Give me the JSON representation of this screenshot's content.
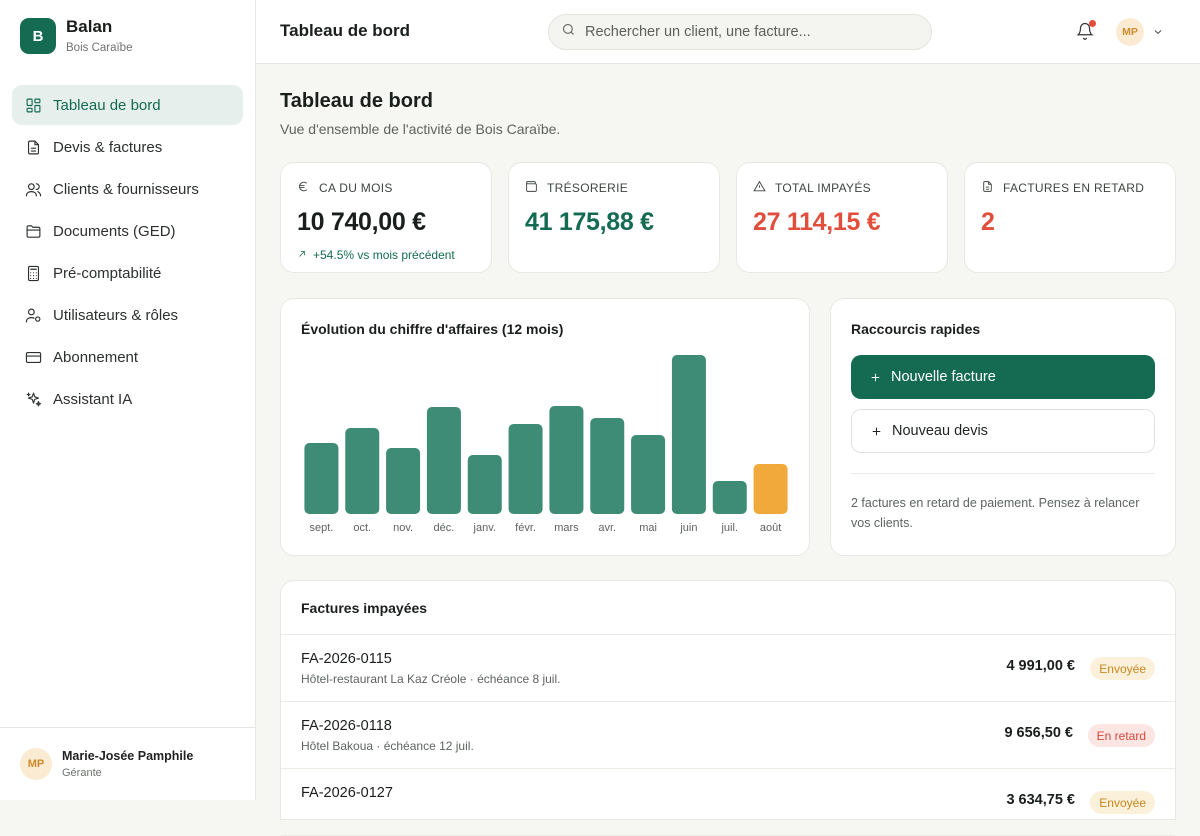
{
  "brand": {
    "initial": "B",
    "name": "Balan",
    "company": "Bois Caraïbe"
  },
  "sidebar": {
    "items": [
      {
        "label": "Tableau de bord",
        "icon": "dashboard-icon",
        "active": true
      },
      {
        "label": "Devis & factures",
        "icon": "file-text-icon"
      },
      {
        "label": "Clients & fournisseurs",
        "icon": "users-icon"
      },
      {
        "label": "Documents (GED)",
        "icon": "folder-icon"
      },
      {
        "label": "Pré-comptabilité",
        "icon": "calculator-icon"
      },
      {
        "label": "Utilisateurs & rôles",
        "icon": "user-cog-icon"
      },
      {
        "label": "Abonnement",
        "icon": "credit-card-icon"
      },
      {
        "label": "Assistant IA",
        "icon": "sparkles-icon"
      }
    ],
    "user": {
      "initials": "MP",
      "name": "Marie-Josée Pamphile",
      "role": "Gérante"
    }
  },
  "topbar": {
    "title": "Tableau de bord",
    "search_placeholder": "Rechercher un client, une facture...",
    "avatar_initials": "MP"
  },
  "page": {
    "title": "Tableau de bord",
    "subtitle": "Vue d'ensemble de l'activité de Bois Caraïbe."
  },
  "kpis": [
    {
      "label": "CA du mois",
      "icon": "euro-icon",
      "value": "10 740,00 €",
      "color": "#1b1f1c",
      "trend": "+54.5% vs mois précédent"
    },
    {
      "label": "Trésorerie",
      "icon": "wallet-icon",
      "value": "41 175,88 €",
      "color": "#146b52"
    },
    {
      "label": "Total impayés",
      "icon": "alert-triangle-icon",
      "value": "27 114,15 €",
      "color": "#e14e3c"
    },
    {
      "label": "Factures en retard",
      "icon": "file-icon",
      "value": "2",
      "color": "#e14e3c"
    }
  ],
  "chart_data": {
    "type": "bar",
    "title": "Évolution du chiffre d'affaires (12 mois)",
    "categories": [
      "sept.",
      "oct.",
      "nov.",
      "déc.",
      "janv.",
      "févr.",
      "mars",
      "avr.",
      "mai",
      "juin",
      "juil.",
      "août"
    ],
    "values": [
      71,
      86,
      66,
      107,
      59,
      90,
      108,
      96,
      79,
      159,
      33,
      50
    ],
    "colors": {
      "bar": "#3e8b76",
      "current": "#f1a93b"
    },
    "highlight_index": 11,
    "grid": false
  },
  "quick": {
    "title": "Raccourcis rapides",
    "primary_label": "Nouvelle facture",
    "secondary_label": "Nouveau devis",
    "note": "2 factures en retard de paiement. Pensez à relancer vos clients."
  },
  "unpaid": {
    "title": "Factures impayées",
    "rows": [
      {
        "number": "FA-2026-0115",
        "meta": "Hôtel-restaurant La Kaz Créole · échéance 8 juil.",
        "amount": "4 991,00 €",
        "status": "Envoyée",
        "status_type": "sent"
      },
      {
        "number": "FA-2026-0118",
        "meta": "Hôtel Bakoua · échéance 12 juil.",
        "amount": "9 656,50 €",
        "status": "En retard",
        "status_type": "late"
      },
      {
        "number": "FA-2026-0127",
        "meta": "",
        "amount": "3 634,75 €",
        "status": "Envoyée",
        "status_type": "sent"
      }
    ]
  }
}
